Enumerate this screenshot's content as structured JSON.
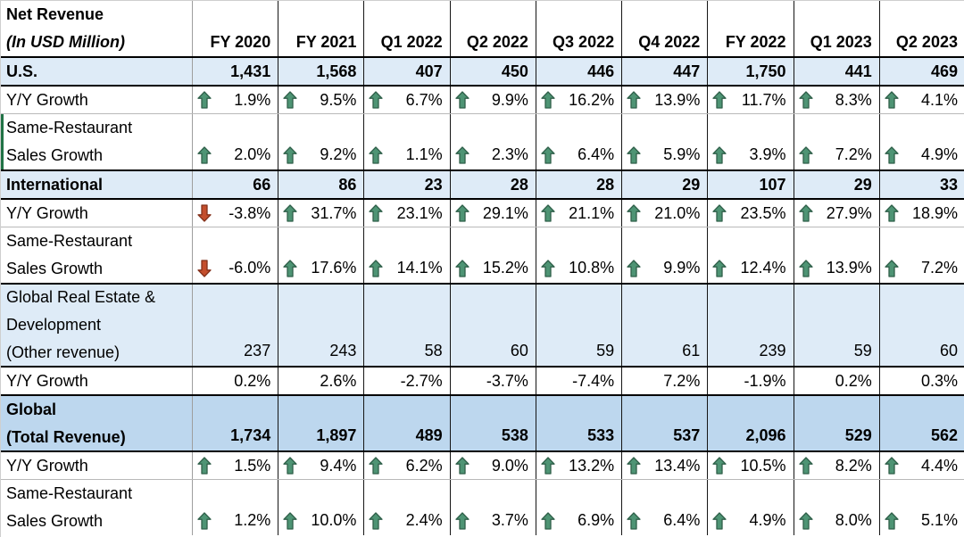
{
  "app": {
    "type": "spreadsheet-revenue-table"
  },
  "colors": {
    "section_light_bg": "#DEEBF7",
    "section_dark_bg": "#BDD7EE",
    "grid_thin": "#B9B9B9",
    "grid_black": "#000000",
    "accent_green": "#217346",
    "text": "#000000"
  },
  "icons": {
    "up_arrow": {
      "name": "up-arrow-icon",
      "fill": "#4E9474",
      "stroke": "#2F5F49"
    },
    "down_arrow": {
      "name": "down-arrow-icon",
      "fill": "#C44E2C",
      "stroke": "#82301A"
    }
  },
  "table": {
    "title_line1": "Net Revenue",
    "title_line2": "(In USD Million)",
    "columns": [
      "FY 2020",
      "FY 2021",
      "Q1 2022",
      "Q2 2022",
      "Q3 2022",
      "Q4 2022",
      "FY 2022",
      "Q1 2023",
      "Q2 2023"
    ],
    "rows": [
      {
        "label_lines": [
          "U.S."
        ],
        "bold": true,
        "bg": "light",
        "border_top": "thick",
        "values": [
          "1,431",
          "1,568",
          "407",
          "450",
          "446",
          "447",
          "1,750",
          "441",
          "469"
        ]
      },
      {
        "label_lines": [
          "Y/Y Growth"
        ],
        "bold": false,
        "bg": "white",
        "border_top": "thick",
        "arrows": [
          "up",
          "up",
          "up",
          "up",
          "up",
          "up",
          "up",
          "up",
          "up"
        ],
        "values": [
          "1.9%",
          "9.5%",
          "6.7%",
          "9.9%",
          "16.2%",
          "13.9%",
          "11.7%",
          "8.3%",
          "4.1%"
        ]
      },
      {
        "label_lines": [
          "Same-Restaurant",
          "Sales Growth"
        ],
        "bold": false,
        "bg": "white",
        "border_top": "thin",
        "left_accent": true,
        "arrows": [
          "up",
          "up",
          "up",
          "up",
          "up",
          "up",
          "up",
          "up",
          "up"
        ],
        "values": [
          "2.0%",
          "9.2%",
          "1.1%",
          "2.3%",
          "6.4%",
          "5.9%",
          "3.9%",
          "7.2%",
          "4.9%"
        ]
      },
      {
        "label_lines": [
          "International"
        ],
        "bold": true,
        "bg": "light",
        "border_top": "thick",
        "values": [
          "66",
          "86",
          "23",
          "28",
          "28",
          "29",
          "107",
          "29",
          "33"
        ]
      },
      {
        "label_lines": [
          "Y/Y Growth"
        ],
        "bold": false,
        "bg": "white",
        "border_top": "thick",
        "arrows": [
          "down",
          "up",
          "up",
          "up",
          "up",
          "up",
          "up",
          "up",
          "up"
        ],
        "values": [
          "-3.8%",
          "31.7%",
          "23.1%",
          "29.1%",
          "21.1%",
          "21.0%",
          "23.5%",
          "27.9%",
          "18.9%"
        ]
      },
      {
        "label_lines": [
          "Same-Restaurant",
          "Sales Growth"
        ],
        "bold": false,
        "bg": "white",
        "border_top": "thin",
        "arrows": [
          "down",
          "up",
          "up",
          "up",
          "up",
          "up",
          "up",
          "up",
          "up"
        ],
        "values": [
          "-6.0%",
          "17.6%",
          "14.1%",
          "15.2%",
          "10.8%",
          "9.9%",
          "12.4%",
          "13.9%",
          "7.2%"
        ]
      },
      {
        "label_lines": [
          "Global Real Estate &",
          "Development",
          "(Other revenue)"
        ],
        "bold": false,
        "bg": "light",
        "border_top": "thick",
        "values": [
          "237",
          "243",
          "58",
          "60",
          "59",
          "61",
          "239",
          "59",
          "60"
        ]
      },
      {
        "label_lines": [
          "Y/Y Growth"
        ],
        "bold": false,
        "bg": "white",
        "border_top": "thick",
        "values": [
          "0.2%",
          "2.6%",
          "-2.7%",
          "-3.7%",
          "-7.4%",
          "7.2%",
          "-1.9%",
          "0.2%",
          "0.3%"
        ]
      },
      {
        "label_lines": [
          "Global",
          "(Total Revenue)"
        ],
        "bold": true,
        "bg": "dark",
        "border_top": "thick",
        "values": [
          "1,734",
          "1,897",
          "489",
          "538",
          "533",
          "537",
          "2,096",
          "529",
          "562"
        ]
      },
      {
        "label_lines": [
          "Y/Y Growth"
        ],
        "bold": false,
        "bg": "white",
        "border_top": "thick",
        "arrows": [
          "up",
          "up",
          "up",
          "up",
          "up",
          "up",
          "up",
          "up",
          "up"
        ],
        "values": [
          "1.5%",
          "9.4%",
          "6.2%",
          "9.0%",
          "13.2%",
          "13.4%",
          "10.5%",
          "8.2%",
          "4.4%"
        ]
      },
      {
        "label_lines": [
          "Same-Restaurant",
          "Sales Growth"
        ],
        "bold": false,
        "bg": "white",
        "border_top": "thin",
        "arrows": [
          "up",
          "up",
          "up",
          "up",
          "up",
          "up",
          "up",
          "up",
          "up"
        ],
        "values": [
          "1.2%",
          "10.0%",
          "2.4%",
          "3.7%",
          "6.9%",
          "6.4%",
          "4.9%",
          "8.0%",
          "5.1%"
        ]
      }
    ]
  }
}
